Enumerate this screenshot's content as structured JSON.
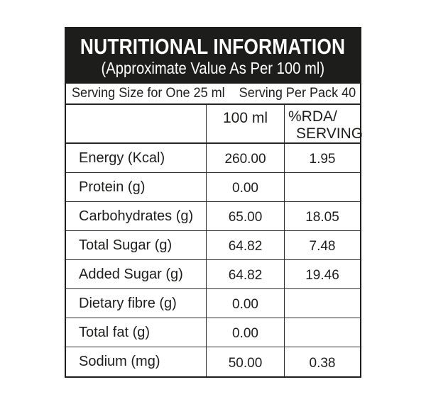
{
  "label": {
    "title": "NUTRITIONAL INFORMATION",
    "subtitle": "(Approximate Value As Per 100 ml)",
    "serving": {
      "size": "Serving Size for One 25 ml",
      "per_pack": "Serving Per Pack 40"
    },
    "columns": {
      "nutrient": "",
      "per_100ml": "100 ml",
      "rda_line1": "%RDA/",
      "rda_line2": "SERVING"
    },
    "rows": [
      {
        "label": "Energy (Kcal)",
        "per_100ml": "260.00",
        "rda_serving": "1.95"
      },
      {
        "label": "Protein (g)",
        "per_100ml": "0.00",
        "rda_serving": ""
      },
      {
        "label": "Carbohydrates (g)",
        "per_100ml": "65.00",
        "rda_serving": "18.05"
      },
      {
        "label": "Total Sugar (g)",
        "per_100ml": "64.82",
        "rda_serving": "7.48"
      },
      {
        "label": "Added Sugar (g)",
        "per_100ml": "64.82",
        "rda_serving": "19.46"
      },
      {
        "label": "Dietary fibre (g)",
        "per_100ml": "0.00",
        "rda_serving": ""
      },
      {
        "label": "Total fat (g)",
        "per_100ml": "0.00",
        "rda_serving": ""
      },
      {
        "label": "Sodium (mg)",
        "per_100ml": "50.00",
        "rda_serving": "0.38"
      }
    ],
    "colors": {
      "header_bg": "#1d1d1b",
      "header_text": "#ffffff",
      "border": "#2e2e2e",
      "text": "#1d1d1b",
      "background": "#ffffff"
    }
  }
}
